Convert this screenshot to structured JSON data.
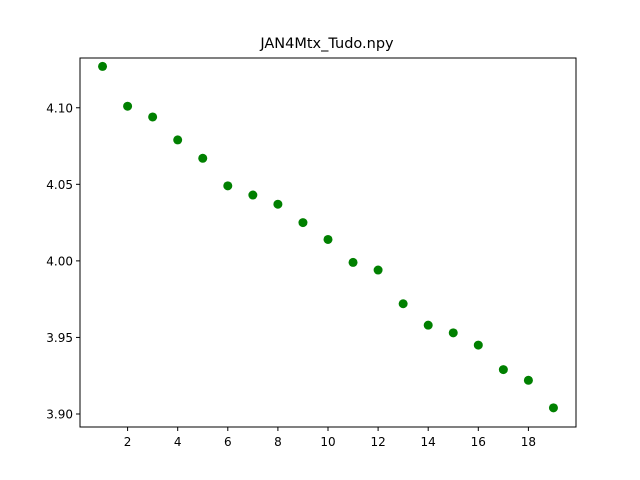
{
  "chart_data": {
    "type": "scatter",
    "title": "JAN4Mtx_Tudo.npy",
    "xlabel": "",
    "ylabel": "",
    "marker_color": "#008000",
    "xlim": [
      0.1,
      19.9
    ],
    "ylim": [
      3.8915,
      4.1325
    ],
    "grid": false,
    "x_ticks": [
      2,
      4,
      6,
      8,
      10,
      12,
      14,
      16,
      18
    ],
    "y_ticks": [
      3.9,
      3.95,
      4.0,
      4.05,
      4.1
    ],
    "y_tick_labels": [
      "3.90",
      "3.95",
      "4.00",
      "4.05",
      "4.10"
    ],
    "series": [
      {
        "x": [
          1,
          2,
          3,
          4,
          5,
          6,
          7,
          8,
          9,
          10,
          11,
          12,
          13,
          14,
          15,
          16,
          17,
          18,
          19
        ],
        "y": [
          4.127,
          4.101,
          4.094,
          4.079,
          4.067,
          4.049,
          4.043,
          4.037,
          4.025,
          4.014,
          3.999,
          3.994,
          3.972,
          3.958,
          3.953,
          3.945,
          3.929,
          3.922,
          3.904
        ]
      }
    ]
  }
}
